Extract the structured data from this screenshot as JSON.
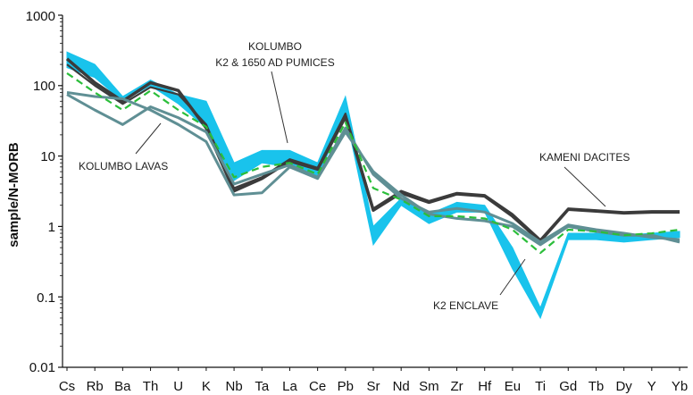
{
  "chart_data": {
    "type": "line",
    "ylabel": "sample/N-MORB",
    "yscale": "log",
    "ylim": [
      0.01,
      1000
    ],
    "yticks": [
      "1000",
      "100",
      "10",
      "1",
      "0.1",
      "0.01"
    ],
    "grid": false,
    "categories": [
      "Cs",
      "Rb",
      "Ba",
      "Th",
      "U",
      "K",
      "Nb",
      "Ta",
      "La",
      "Ce",
      "Pb",
      "Sr",
      "Nd",
      "Sm",
      "Zr",
      "Hf",
      "Eu",
      "Ti",
      "Gd",
      "Tb",
      "Dy",
      "Y",
      "Yb"
    ],
    "annotations": [
      {
        "text": "KOLUMBO",
        "target": "band"
      },
      {
        "text": "K2 & 1650 AD PUMICES",
        "target": "band"
      },
      {
        "text": "KOLUMBO LAVAS",
        "target": "lavas"
      },
      {
        "text": "KAMENI DACITES",
        "target": "kameni"
      },
      {
        "text": "K2 ENCLAVE",
        "target": "enclave"
      }
    ],
    "colors": {
      "band": "#19c3ec",
      "kameni": "#3b3b3b",
      "lavas": "#5f8f94",
      "enclave": "#2bbe3a"
    },
    "band": {
      "upper": [
        300,
        200,
        70,
        120,
        75,
        60,
        8,
        12,
        12,
        8,
        70,
        1.0,
        2.5,
        1.5,
        2.2,
        2.0,
        0.5,
        0.07,
        0.8,
        0.8,
        0.75,
        0.8,
        0.85
      ],
      "lower": [
        180,
        130,
        60,
        100,
        55,
        25,
        4.5,
        8,
        7,
        5,
        40,
        0.55,
        2.0,
        1.1,
        1.6,
        1.6,
        0.25,
        0.05,
        0.65,
        0.65,
        0.6,
        0.65,
        0.7
      ]
    },
    "series": [
      {
        "key": "kameni",
        "width": 3.5,
        "dash": "",
        "values": [
          240,
          110,
          60,
          110,
          85,
          25,
          3.2,
          4.8,
          8.5,
          6.5,
          36,
          1.7,
          3.0,
          2.2,
          2.9,
          2.7,
          1.4,
          0.62,
          1.75,
          1.65,
          1.55,
          1.6,
          1.6
        ]
      },
      {
        "key": "kameni",
        "width": 2.2,
        "dash": "",
        "values": [
          200,
          100,
          55,
          95,
          75,
          28,
          3.5,
          5,
          9,
          6.8,
          40,
          1.8,
          3.2,
          2.3,
          3.0,
          2.8,
          1.5,
          0.65,
          1.8,
          1.7,
          1.6,
          1.65,
          1.65
        ]
      },
      {
        "key": "lavas",
        "width": 3,
        "dash": "",
        "values": [
          80,
          70,
          65,
          45,
          28,
          16,
          2.8,
          3.0,
          7,
          4.8,
          22,
          6,
          2.8,
          1.5,
          1.3,
          1.2,
          1.0,
          0.55,
          1.0,
          0.85,
          0.75,
          0.75,
          0.6
        ]
      },
      {
        "key": "lavas",
        "width": 3,
        "dash": "",
        "values": [
          75,
          45,
          28,
          50,
          35,
          22,
          4.0,
          5.5,
          7.5,
          5,
          25,
          5.5,
          2.5,
          1.6,
          1.8,
          1.6,
          1.1,
          0.6,
          1.05,
          0.9,
          0.8,
          0.7,
          0.65
        ]
      },
      {
        "key": "enclave",
        "width": 2.2,
        "dash": "8 5",
        "values": [
          150,
          80,
          45,
          85,
          45,
          26,
          5,
          7,
          8,
          5.5,
          30,
          3.5,
          2.4,
          1.4,
          1.4,
          1.3,
          0.9,
          0.42,
          0.9,
          0.85,
          0.75,
          0.8,
          0.9
        ]
      }
    ]
  }
}
